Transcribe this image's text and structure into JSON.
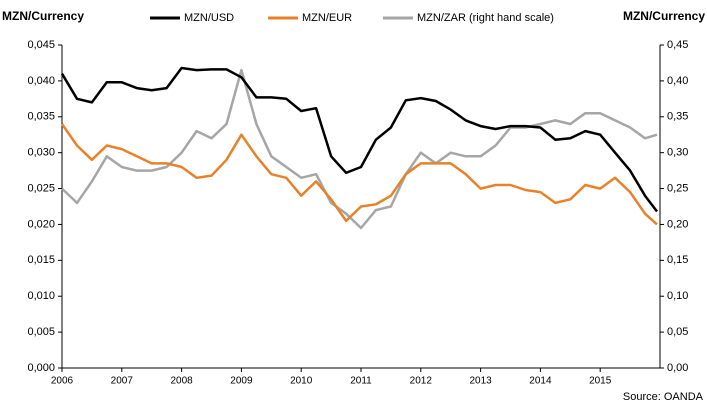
{
  "chart_data": {
    "type": "line",
    "y_label": "MZN/Currency",
    "y2_label": "MZN/Currency",
    "source": "Source: OANDA",
    "x": [
      2006,
      2006.25,
      2006.5,
      2006.75,
      2007,
      2007.25,
      2007.5,
      2007.75,
      2008,
      2008.25,
      2008.5,
      2008.75,
      2009,
      2009.25,
      2009.5,
      2009.75,
      2010,
      2010.25,
      2010.5,
      2010.75,
      2011,
      2011.25,
      2011.5,
      2011.75,
      2012,
      2012.25,
      2012.5,
      2012.75,
      2013,
      2013.25,
      2013.5,
      2013.75,
      2014,
      2014.25,
      2014.5,
      2014.75,
      2015,
      2015.25,
      2015.5,
      2015.75,
      2015.95
    ],
    "xlim": [
      2006,
      2016
    ],
    "xticks": [
      2006,
      2007,
      2008,
      2009,
      2010,
      2011,
      2012,
      2013,
      2014,
      2015
    ],
    "ylim": [
      0,
      0.045
    ],
    "yticks": [
      {
        "value": 0,
        "label": "0,000"
      },
      {
        "value": 0.005,
        "label": "0,005"
      },
      {
        "value": 0.01,
        "label": "0,010"
      },
      {
        "value": 0.015,
        "label": "0,015"
      },
      {
        "value": 0.02,
        "label": "0,020"
      },
      {
        "value": 0.025,
        "label": "0,025"
      },
      {
        "value": 0.03,
        "label": "0,030"
      },
      {
        "value": 0.035,
        "label": "0,035"
      },
      {
        "value": 0.04,
        "label": "0,040"
      },
      {
        "value": 0.045,
        "label": "0,045"
      }
    ],
    "y2lim": [
      0,
      0.45
    ],
    "y2ticks": [
      {
        "value": 0,
        "label": "0,00"
      },
      {
        "value": 0.05,
        "label": "0,05"
      },
      {
        "value": 0.1,
        "label": "0,10"
      },
      {
        "value": 0.15,
        "label": "0,15"
      },
      {
        "value": 0.2,
        "label": "0,20"
      },
      {
        "value": 0.25,
        "label": "0,25"
      },
      {
        "value": 0.3,
        "label": "0,30"
      },
      {
        "value": 0.35,
        "label": "0,35"
      },
      {
        "value": 0.4,
        "label": "0,40"
      },
      {
        "value": 0.45,
        "label": "0,45"
      }
    ],
    "series": [
      {
        "name": "MZN/USD",
        "color": "#000000",
        "values": [
          0.041,
          0.0375,
          0.037,
          0.0398,
          0.0398,
          0.039,
          0.0387,
          0.039,
          0.0418,
          0.0415,
          0.0416,
          0.0416,
          0.0405,
          0.0377,
          0.0377,
          0.0375,
          0.0358,
          0.0362,
          0.0295,
          0.0272,
          0.028,
          0.0318,
          0.0335,
          0.0373,
          0.0376,
          0.0372,
          0.036,
          0.0345,
          0.0337,
          0.0333,
          0.0337,
          0.0337,
          0.0335,
          0.0318,
          0.032,
          0.033,
          0.0325,
          0.03,
          0.0275,
          0.024,
          0.0218
        ]
      },
      {
        "name": "MZN/EUR",
        "color": "#e8822a",
        "values": [
          0.034,
          0.031,
          0.029,
          0.031,
          0.0305,
          0.0295,
          0.0285,
          0.0285,
          0.028,
          0.0265,
          0.0268,
          0.029,
          0.0325,
          0.0295,
          0.027,
          0.0265,
          0.024,
          0.026,
          0.0235,
          0.0205,
          0.0225,
          0.0228,
          0.024,
          0.027,
          0.0285,
          0.0285,
          0.0285,
          0.027,
          0.025,
          0.0255,
          0.0255,
          0.0248,
          0.0245,
          0.023,
          0.0235,
          0.0255,
          0.025,
          0.0265,
          0.0245,
          0.0215,
          0.02
        ]
      },
      {
        "name": "MZN/ZAR (right hand scale)",
        "color": "#a6a6a6",
        "axis": "y2",
        "values": [
          0.25,
          0.23,
          0.26,
          0.295,
          0.28,
          0.275,
          0.275,
          0.28,
          0.3,
          0.33,
          0.32,
          0.34,
          0.415,
          0.34,
          0.295,
          0.28,
          0.265,
          0.27,
          0.23,
          0.215,
          0.195,
          0.22,
          0.225,
          0.27,
          0.3,
          0.285,
          0.3,
          0.295,
          0.295,
          0.31,
          0.335,
          0.335,
          0.34,
          0.345,
          0.34,
          0.355,
          0.355,
          0.345,
          0.335,
          0.32,
          0.325
        ]
      }
    ]
  }
}
